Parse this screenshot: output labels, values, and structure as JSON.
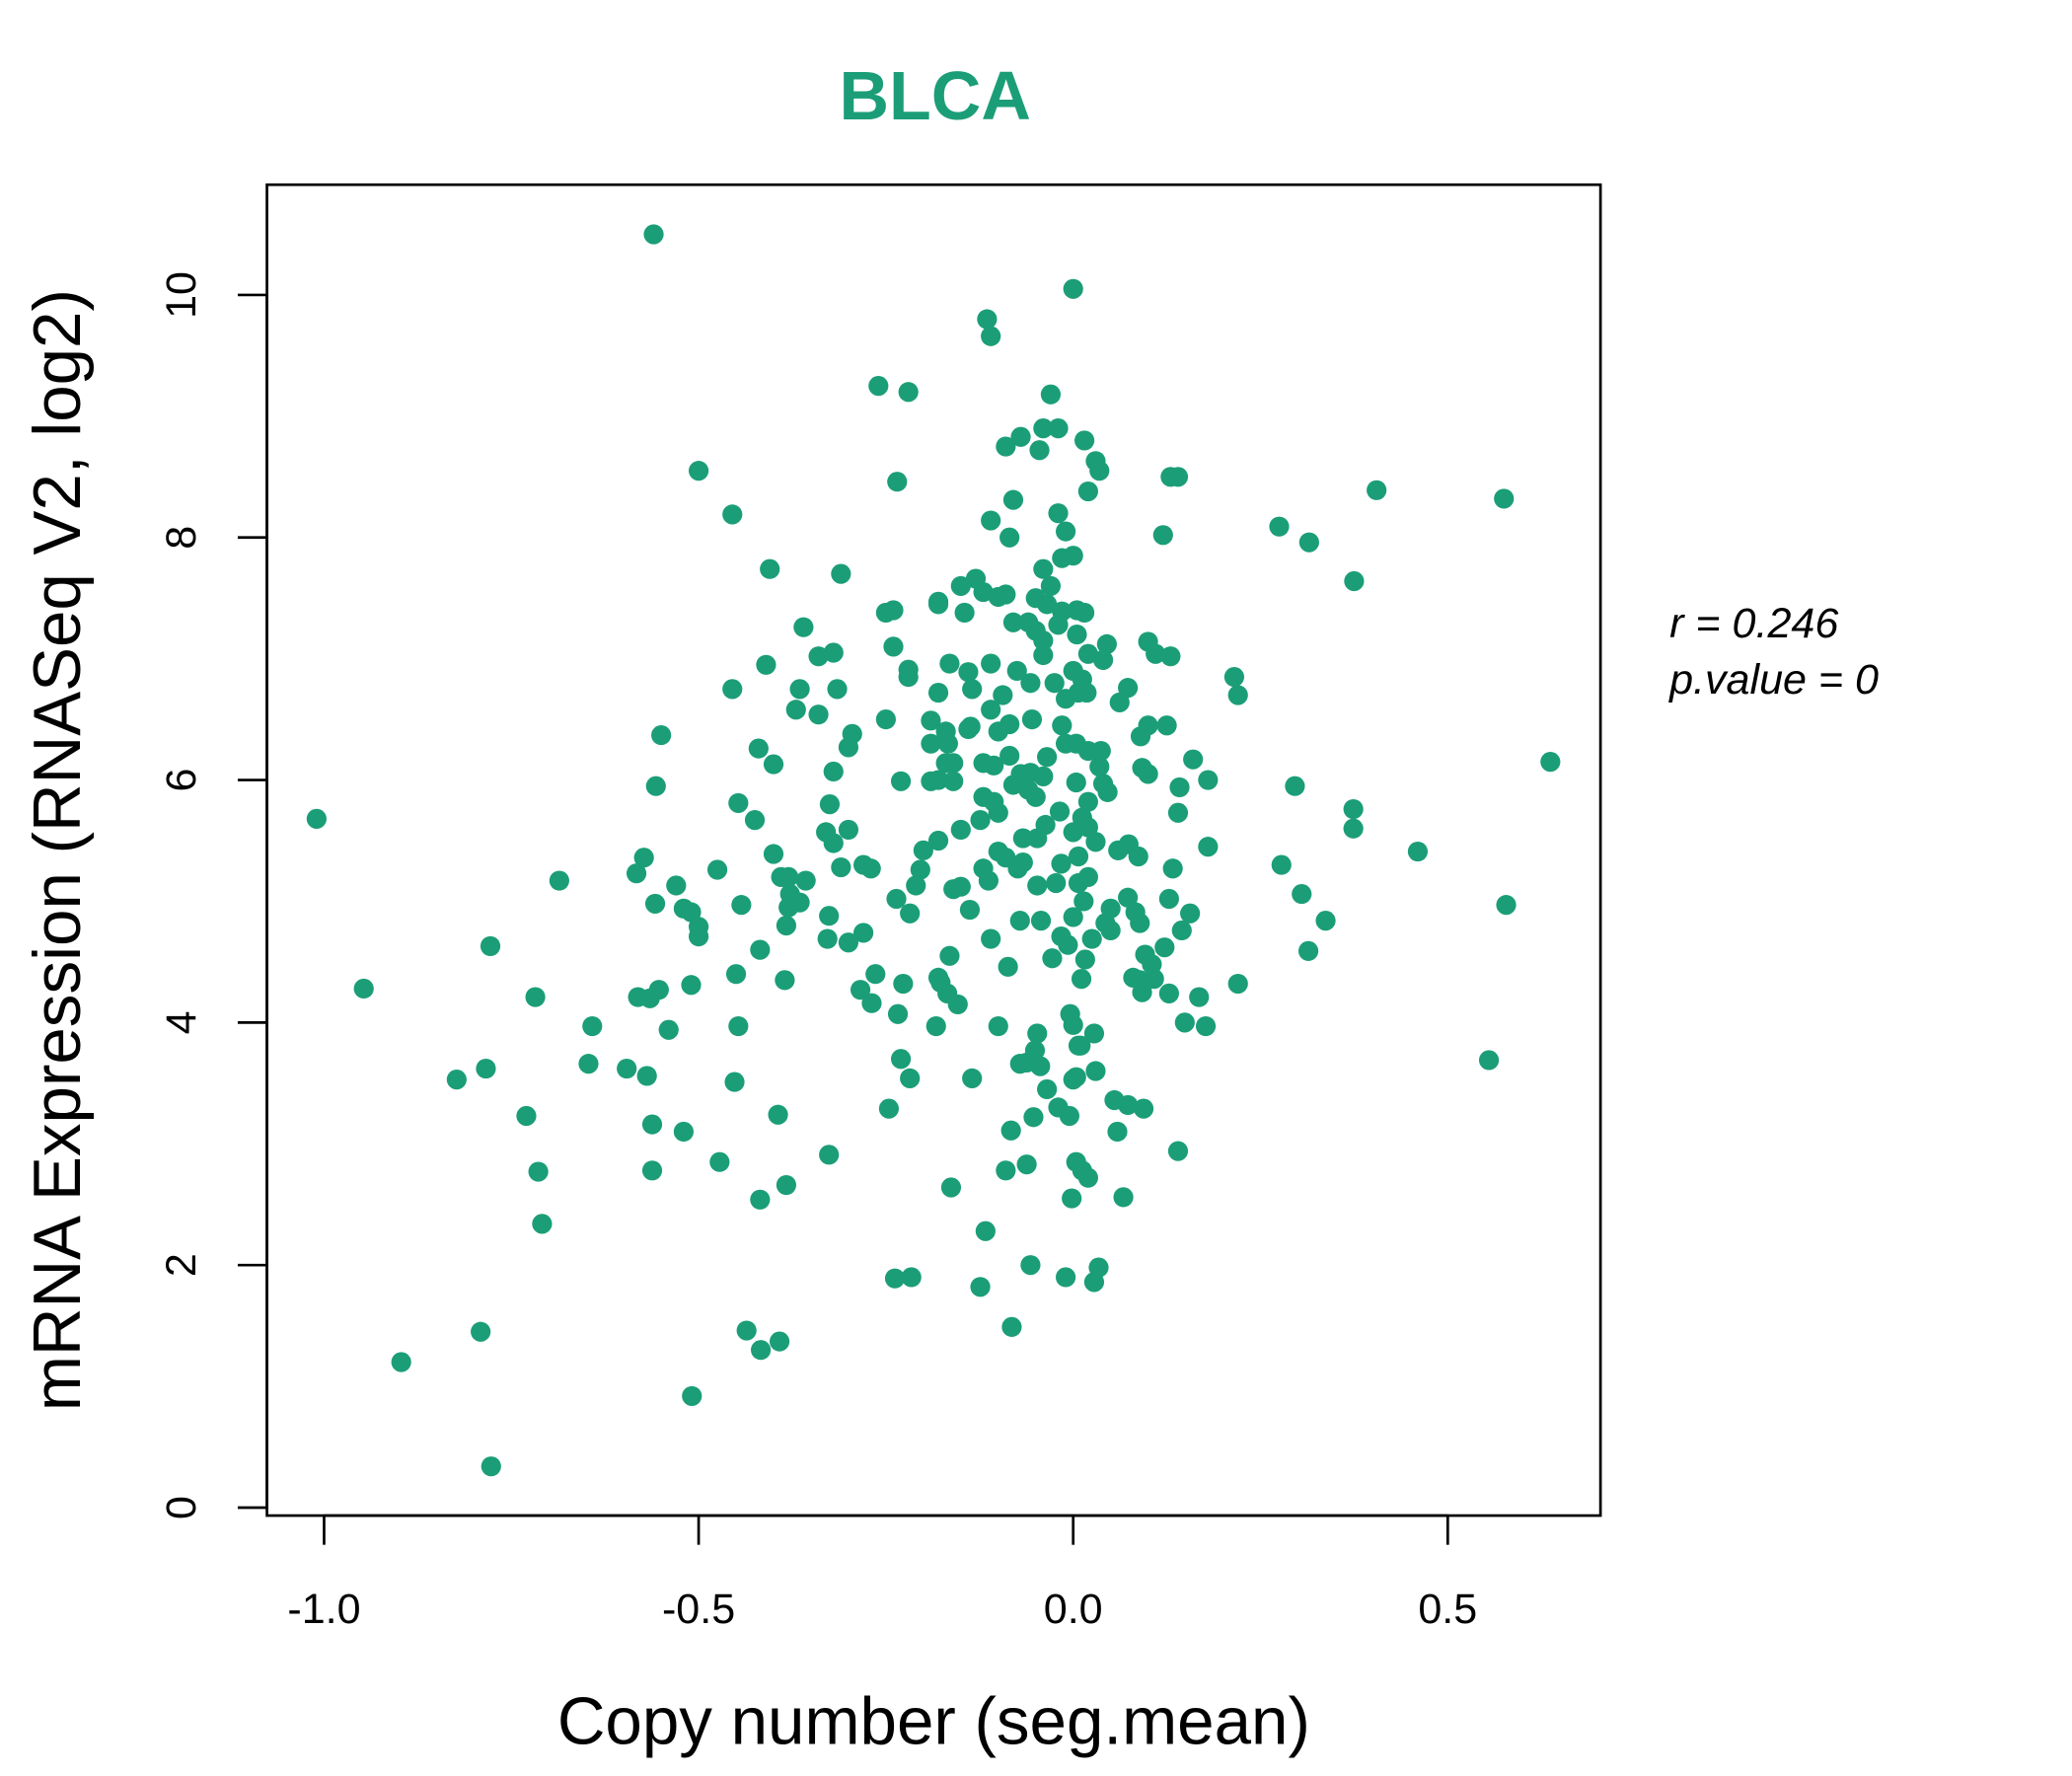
{
  "chart_data": {
    "type": "scatter",
    "title": "BLCA",
    "xlabel": "Copy number (seg.mean)",
    "ylabel": "mRNA Expression (RNASeq V2, log2)",
    "xlim": [
      -1.07,
      0.71
    ],
    "ylim": [
      -0.07,
      10.9
    ],
    "x_ticks": [
      -1.0,
      -0.5,
      0.0,
      0.5
    ],
    "x_tick_labels": [
      "-1.0",
      "-0.5",
      "0.0",
      "0.5"
    ],
    "y_ticks": [
      0,
      2,
      4,
      6,
      8,
      10
    ],
    "y_tick_labels": [
      "0",
      "2",
      "4",
      "6",
      "8",
      "10"
    ],
    "grid": false,
    "point_color": "#1B9E77",
    "annotations": {
      "r": "r = 0.246",
      "p": "p.value = 0"
    },
    "points": [
      [
        -0.56,
        10.5
      ],
      [
        0.0,
        10.05
      ],
      [
        -0.115,
        9.8
      ],
      [
        -0.11,
        9.66
      ],
      [
        -0.26,
        9.25
      ],
      [
        -0.22,
        9.2
      ],
      [
        -0.03,
        9.18
      ],
      [
        -0.04,
        8.9
      ],
      [
        -0.02,
        8.9
      ],
      [
        -0.07,
        8.83
      ],
      [
        -0.09,
        8.75
      ],
      [
        -0.045,
        8.72
      ],
      [
        0.015,
        8.8
      ],
      [
        0.03,
        8.63
      ],
      [
        0.035,
        8.55
      ],
      [
        -0.5,
        8.55
      ],
      [
        -0.235,
        8.46
      ],
      [
        0.13,
        8.5
      ],
      [
        0.14,
        8.5
      ],
      [
        0.02,
        8.38
      ],
      [
        -0.08,
        8.31
      ],
      [
        0.405,
        8.39
      ],
      [
        0.575,
        8.32
      ],
      [
        -0.455,
        8.19
      ],
      [
        -0.11,
        8.14
      ],
      [
        -0.02,
        8.2
      ],
      [
        0.275,
        8.09
      ],
      [
        -0.01,
        8.05
      ],
      [
        -0.085,
        8.0
      ],
      [
        0.12,
        8.02
      ],
      [
        0.315,
        7.96
      ],
      [
        0.0,
        7.85
      ],
      [
        -0.015,
        7.83
      ],
      [
        -0.405,
        7.74
      ],
      [
        -0.31,
        7.7
      ],
      [
        0.375,
        7.64
      ],
      [
        -0.04,
        7.74
      ],
      [
        -0.13,
        7.66
      ],
      [
        -0.15,
        7.6
      ],
      [
        -0.12,
        7.55
      ],
      [
        -0.09,
        7.53
      ],
      [
        -0.1,
        7.51
      ],
      [
        -0.03,
        7.6
      ],
      [
        -0.05,
        7.5
      ],
      [
        -0.035,
        7.45
      ],
      [
        -0.18,
        7.47
      ],
      [
        -0.18,
        7.45
      ],
      [
        0.005,
        7.4
      ],
      [
        0.015,
        7.38
      ],
      [
        -0.145,
        7.38
      ],
      [
        -0.25,
        7.38
      ],
      [
        -0.24,
        7.4
      ],
      [
        -0.08,
        7.3
      ],
      [
        -0.06,
        7.3
      ],
      [
        -0.05,
        7.23
      ],
      [
        -0.02,
        7.28
      ],
      [
        -0.015,
        7.39
      ],
      [
        -0.36,
        7.26
      ],
      [
        0.005,
        7.2
      ],
      [
        -0.04,
        7.15
      ],
      [
        -0.24,
        7.1
      ],
      [
        0.045,
        7.12
      ],
      [
        0.1,
        7.14
      ],
      [
        0.11,
        7.04
      ],
      [
        0.13,
        7.02
      ],
      [
        -0.32,
        7.05
      ],
      [
        -0.34,
        7.02
      ],
      [
        -0.04,
        7.03
      ],
      [
        0.02,
        7.04
      ],
      [
        0.04,
        6.99
      ],
      [
        -0.165,
        6.96
      ],
      [
        -0.11,
        6.96
      ],
      [
        -0.41,
        6.95
      ],
      [
        -0.14,
        6.89
      ],
      [
        -0.22,
        6.91
      ],
      [
        -0.22,
        6.85
      ],
      [
        0.0,
        6.9
      ],
      [
        -0.075,
        6.9
      ],
      [
        0.215,
        6.85
      ],
      [
        -0.057,
        6.8
      ],
      [
        -0.025,
        6.8
      ],
      [
        0.012,
        6.83
      ],
      [
        -0.455,
        6.75
      ],
      [
        0.073,
        6.76
      ],
      [
        -0.365,
        6.75
      ],
      [
        -0.315,
        6.75
      ],
      [
        -0.18,
        6.72
      ],
      [
        -0.135,
        6.75
      ],
      [
        0.007,
        6.72
      ],
      [
        0.018,
        6.72
      ],
      [
        0.22,
        6.7
      ],
      [
        -0.094,
        6.7
      ],
      [
        -0.01,
        6.67
      ],
      [
        0.062,
        6.64
      ],
      [
        -0.37,
        6.58
      ],
      [
        -0.34,
        6.54
      ],
      [
        -0.11,
        6.58
      ],
      [
        -0.25,
        6.5
      ],
      [
        -0.19,
        6.49
      ],
      [
        -0.055,
        6.5
      ],
      [
        -0.085,
        6.46
      ],
      [
        0.125,
        6.45
      ],
      [
        0.1,
        6.45
      ],
      [
        -0.137,
        6.44
      ],
      [
        -0.14,
        6.42
      ],
      [
        -0.015,
        6.45
      ],
      [
        -0.17,
        6.4
      ],
      [
        -0.295,
        6.38
      ],
      [
        -0.55,
        6.37
      ],
      [
        -0.1,
        6.4
      ],
      [
        0.09,
        6.36
      ],
      [
        -0.167,
        6.3
      ],
      [
        -0.19,
        6.3
      ],
      [
        -0.01,
        6.3
      ],
      [
        0.004,
        6.3
      ],
      [
        -0.3,
        6.27
      ],
      [
        -0.42,
        6.26
      ],
      [
        0.02,
        6.24
      ],
      [
        0.037,
        6.24
      ],
      [
        0.16,
        6.17
      ],
      [
        -0.085,
        6.2
      ],
      [
        -0.12,
        6.14
      ],
      [
        -0.4,
        6.13
      ],
      [
        -0.035,
        6.19
      ],
      [
        -0.17,
        6.14
      ],
      [
        -0.16,
        6.14
      ],
      [
        -0.106,
        6.12
      ],
      [
        0.035,
        6.11
      ],
      [
        0.092,
        6.1
      ],
      [
        0.1,
        6.05
      ],
      [
        0.637,
        6.15
      ],
      [
        -0.32,
        6.07
      ],
      [
        -0.057,
        6.06
      ],
      [
        -0.07,
        6.05
      ],
      [
        -0.04,
        6.03
      ],
      [
        -0.18,
        6.0
      ],
      [
        -0.19,
        5.99
      ],
      [
        -0.16,
        5.99
      ],
      [
        -0.23,
        5.99
      ],
      [
        0.18,
        6.0
      ],
      [
        -0.557,
        5.95
      ],
      [
        0.296,
        5.95
      ],
      [
        0.004,
        5.98
      ],
      [
        0.04,
        5.97
      ],
      [
        0.142,
        5.94
      ],
      [
        -0.08,
        5.96
      ],
      [
        -0.06,
        5.92
      ],
      [
        -0.05,
        5.86
      ],
      [
        0.046,
        5.9
      ],
      [
        -0.12,
        5.86
      ],
      [
        -0.106,
        5.82
      ],
      [
        -0.447,
        5.81
      ],
      [
        -0.325,
        5.8
      ],
      [
        0.02,
        5.82
      ],
      [
        0.374,
        5.76
      ],
      [
        0.14,
        5.73
      ],
      [
        -1.01,
        5.68
      ],
      [
        -0.425,
        5.67
      ],
      [
        -0.124,
        5.67
      ],
      [
        -0.1,
        5.73
      ],
      [
        -0.018,
        5.74
      ],
      [
        0.012,
        5.69
      ],
      [
        0.02,
        5.61
      ],
      [
        -0.15,
        5.59
      ],
      [
        0.374,
        5.6
      ],
      [
        -0.3,
        5.59
      ],
      [
        -0.33,
        5.57
      ],
      [
        -0.037,
        5.63
      ],
      [
        0.0,
        5.57
      ],
      [
        -0.048,
        5.52
      ],
      [
        -0.067,
        5.52
      ],
      [
        -0.18,
        5.5
      ],
      [
        -0.32,
        5.48
      ],
      [
        0.03,
        5.49
      ],
      [
        0.074,
        5.47
      ],
      [
        0.06,
        5.42
      ],
      [
        0.18,
        5.45
      ],
      [
        -0.4,
        5.39
      ],
      [
        0.46,
        5.41
      ],
      [
        -0.2,
        5.42
      ],
      [
        0.087,
        5.37
      ],
      [
        -0.1,
        5.41
      ],
      [
        -0.09,
        5.36
      ],
      [
        0.007,
        5.37
      ],
      [
        -0.016,
        5.31
      ],
      [
        -0.067,
        5.32
      ],
      [
        -0.573,
        5.36
      ],
      [
        -0.12,
        5.27
      ],
      [
        -0.074,
        5.27
      ],
      [
        0.278,
        5.3
      ],
      [
        -0.31,
        5.28
      ],
      [
        -0.28,
        5.3
      ],
      [
        -0.27,
        5.27
      ],
      [
        -0.475,
        5.26
      ],
      [
        0.133,
        5.27
      ],
      [
        -0.583,
        5.23
      ],
      [
        -0.204,
        5.26
      ],
      [
        -0.21,
        5.13
      ],
      [
        -0.39,
        5.2
      ],
      [
        -0.38,
        5.2
      ],
      [
        -0.357,
        5.17
      ],
      [
        -0.686,
        5.17
      ],
      [
        0.02,
        5.2
      ],
      [
        0.007,
        5.15
      ],
      [
        -0.113,
        5.17
      ],
      [
        -0.023,
        5.15
      ],
      [
        -0.048,
        5.13
      ],
      [
        -0.16,
        5.1
      ],
      [
        -0.15,
        5.12
      ],
      [
        -0.53,
        5.13
      ],
      [
        0.305,
        5.06
      ],
      [
        -0.378,
        5.06
      ],
      [
        0.073,
        5.03
      ],
      [
        0.128,
        5.02
      ],
      [
        -0.236,
        5.02
      ],
      [
        0.014,
        5.0
      ],
      [
        -0.365,
        4.99
      ],
      [
        -0.38,
        4.95
      ],
      [
        -0.443,
        4.97
      ],
      [
        -0.558,
        4.98
      ],
      [
        0.578,
        4.97
      ],
      [
        0.05,
        4.94
      ],
      [
        0.083,
        4.91
      ],
      [
        -0.52,
        4.94
      ],
      [
        -0.51,
        4.91
      ],
      [
        -0.138,
        4.93
      ],
      [
        -0.218,
        4.9
      ],
      [
        -0.326,
        4.88
      ],
      [
        0.156,
        4.9
      ],
      [
        0.337,
        4.84
      ],
      [
        -0.071,
        4.84
      ],
      [
        -0.043,
        4.84
      ],
      [
        0.0,
        4.87
      ],
      [
        0.089,
        4.82
      ],
      [
        0.043,
        4.82
      ],
      [
        0.05,
        4.76
      ],
      [
        -0.383,
        4.8
      ],
      [
        -0.5,
        4.79
      ],
      [
        0.145,
        4.76
      ],
      [
        -0.28,
        4.74
      ],
      [
        -0.5,
        4.71
      ],
      [
        -0.016,
        4.71
      ],
      [
        -0.007,
        4.64
      ],
      [
        -0.328,
        4.69
      ],
      [
        -0.3,
        4.66
      ],
      [
        -0.11,
        4.69
      ],
      [
        0.025,
        4.69
      ],
      [
        -0.778,
        4.63
      ],
      [
        0.122,
        4.62
      ],
      [
        -0.418,
        4.6
      ],
      [
        0.314,
        4.59
      ],
      [
        0.096,
        4.56
      ],
      [
        0.105,
        4.48
      ],
      [
        -0.165,
        4.55
      ],
      [
        -0.028,
        4.53
      ],
      [
        0.016,
        4.52
      ],
      [
        -0.087,
        4.46
      ],
      [
        -0.45,
        4.4
      ],
      [
        -0.264,
        4.4
      ],
      [
        0.08,
        4.37
      ],
      [
        0.089,
        4.35
      ],
      [
        -0.18,
        4.37
      ],
      [
        -0.177,
        4.33
      ],
      [
        -0.385,
        4.35
      ],
      [
        0.108,
        4.36
      ],
      [
        -0.227,
        4.32
      ],
      [
        0.011,
        4.36
      ],
      [
        0.22,
        4.32
      ],
      [
        -0.51,
        4.31
      ],
      [
        -0.284,
        4.27
      ],
      [
        -0.947,
        4.28
      ],
      [
        -0.553,
        4.27
      ],
      [
        0.092,
        4.25
      ],
      [
        0.128,
        4.24
      ],
      [
        -0.168,
        4.24
      ],
      [
        0.168,
        4.21
      ],
      [
        -0.718,
        4.21
      ],
      [
        -0.581,
        4.21
      ],
      [
        -0.565,
        4.2
      ],
      [
        -0.154,
        4.15
      ],
      [
        -0.269,
        4.16
      ],
      [
        -0.234,
        4.07
      ],
      [
        -0.004,
        4.07
      ],
      [
        0.149,
        4.0
      ],
      [
        -0.642,
        3.97
      ],
      [
        -0.447,
        3.97
      ],
      [
        -0.1,
        3.97
      ],
      [
        0.177,
        3.97
      ],
      [
        -0.183,
        3.97
      ],
      [
        0.0,
        3.98
      ],
      [
        -0.54,
        3.94
      ],
      [
        -0.048,
        3.91
      ],
      [
        0.028,
        3.91
      ],
      [
        0.007,
        3.81
      ],
      [
        0.01,
        3.81
      ],
      [
        -0.051,
        3.77
      ],
      [
        -0.23,
        3.7
      ],
      [
        0.555,
        3.69
      ],
      [
        -0.062,
        3.67
      ],
      [
        -0.647,
        3.66
      ],
      [
        -0.071,
        3.66
      ],
      [
        -0.044,
        3.64
      ],
      [
        -0.784,
        3.62
      ],
      [
        -0.596,
        3.62
      ],
      [
        0.03,
        3.6
      ],
      [
        -0.569,
        3.56
      ],
      [
        -0.218,
        3.54
      ],
      [
        0.004,
        3.55
      ],
      [
        0.0,
        3.53
      ],
      [
        -0.135,
        3.54
      ],
      [
        -0.452,
        3.51
      ],
      [
        -0.823,
        3.53
      ],
      [
        -0.035,
        3.45
      ],
      [
        0.055,
        3.36
      ],
      [
        0.073,
        3.32
      ],
      [
        0.094,
        3.29
      ],
      [
        -0.02,
        3.3
      ],
      [
        -0.246,
        3.29
      ],
      [
        -0.73,
        3.23
      ],
      [
        -0.394,
        3.24
      ],
      [
        -0.005,
        3.23
      ],
      [
        -0.053,
        3.22
      ],
      [
        -0.562,
        3.16
      ],
      [
        0.059,
        3.1
      ],
      [
        -0.083,
        3.11
      ],
      [
        -0.52,
        3.1
      ],
      [
        -0.326,
        2.91
      ],
      [
        0.14,
        2.94
      ],
      [
        -0.472,
        2.85
      ],
      [
        0.004,
        2.85
      ],
      [
        -0.062,
        2.83
      ],
      [
        0.012,
        2.78
      ],
      [
        0.02,
        2.72
      ],
      [
        -0.714,
        2.77
      ],
      [
        -0.562,
        2.78
      ],
      [
        -0.09,
        2.78
      ],
      [
        -0.383,
        2.66
      ],
      [
        -0.163,
        2.64
      ],
      [
        -0.418,
        2.54
      ],
      [
        -0.002,
        2.55
      ],
      [
        0.067,
        2.56
      ],
      [
        -0.709,
        2.34
      ],
      [
        -0.117,
        2.28
      ],
      [
        -0.057,
        2.0
      ],
      [
        0.034,
        1.98
      ],
      [
        -0.01,
        1.9
      ],
      [
        -0.238,
        1.89
      ],
      [
        -0.216,
        1.9
      ],
      [
        0.028,
        1.86
      ],
      [
        -0.124,
        1.82
      ],
      [
        -0.082,
        1.49
      ],
      [
        -0.791,
        1.45
      ],
      [
        -0.436,
        1.46
      ],
      [
        -0.392,
        1.37
      ],
      [
        -0.417,
        1.3
      ],
      [
        -0.897,
        1.2
      ],
      [
        -0.509,
        0.92
      ],
      [
        -0.777,
        0.34
      ]
    ]
  }
}
